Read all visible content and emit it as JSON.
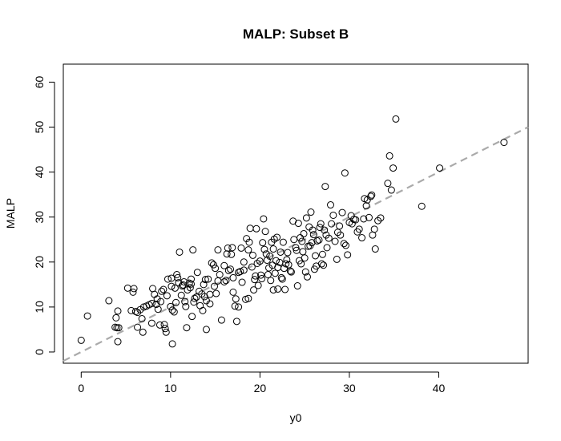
{
  "chart_data": {
    "type": "scatter",
    "title": "MALP: Subset B",
    "xlabel": "y0",
    "ylabel": "MALP",
    "xlim": [
      -2,
      50
    ],
    "ylim": [
      -2.5,
      64
    ],
    "x_ticks": [
      0,
      10,
      20,
      30,
      40
    ],
    "y_ticks": [
      0,
      10,
      20,
      30,
      40,
      50,
      60
    ],
    "x_tick_labels": [
      "0",
      "10",
      "20",
      "30",
      "40"
    ],
    "y_tick_labels": [
      "0",
      "10",
      "20",
      "30",
      "40",
      "50",
      "60"
    ],
    "grid": false,
    "reference_line": {
      "intercept": 0,
      "slope": 1,
      "style": "dashed",
      "color": "#aaaaaa"
    },
    "series": [
      {
        "marker": "open-circle",
        "color": "#000000",
        "points": [
          [
            0.0,
            2.6
          ],
          [
            0.7,
            8.0
          ],
          [
            3.1,
            11.4
          ],
          [
            3.8,
            5.5
          ],
          [
            3.9,
            7.6
          ],
          [
            4.1,
            9.1
          ],
          [
            4.0,
            5.4
          ],
          [
            4.2,
            5.4
          ],
          [
            4.1,
            2.3
          ],
          [
            5.2,
            14.2
          ],
          [
            5.6,
            9.2
          ],
          [
            5.8,
            13.3
          ],
          [
            5.9,
            14.1
          ],
          [
            6.1,
            9.0
          ],
          [
            6.3,
            8.8
          ],
          [
            6.3,
            5.5
          ],
          [
            6.6,
            9.4
          ],
          [
            6.8,
            7.4
          ],
          [
            6.9,
            4.4
          ],
          [
            7.0,
            10.0
          ],
          [
            7.3,
            10.2
          ],
          [
            7.6,
            10.5
          ],
          [
            7.9,
            10.8
          ],
          [
            7.9,
            6.4
          ],
          [
            8.0,
            14.1
          ],
          [
            8.2,
            12.8
          ],
          [
            8.4,
            10.6
          ],
          [
            8.5,
            11.8
          ],
          [
            8.6,
            9.5
          ],
          [
            8.8,
            6.0
          ],
          [
            8.9,
            11.2
          ],
          [
            9.0,
            13.5
          ],
          [
            9.2,
            13.9
          ],
          [
            9.3,
            6.1
          ],
          [
            9.4,
            5.2
          ],
          [
            9.5,
            4.4
          ],
          [
            9.6,
            12.5
          ],
          [
            9.7,
            16.2
          ],
          [
            10.0,
            10.1
          ],
          [
            10.1,
            16.4
          ],
          [
            10.1,
            14.6
          ],
          [
            10.2,
            9.3
          ],
          [
            10.2,
            1.8
          ],
          [
            10.4,
            8.9
          ],
          [
            10.5,
            14.2
          ],
          [
            10.6,
            11.0
          ],
          [
            10.7,
            17.2
          ],
          [
            10.8,
            16.5
          ],
          [
            10.9,
            15.4
          ],
          [
            11.0,
            22.2
          ],
          [
            11.2,
            12.6
          ],
          [
            11.3,
            14.7
          ],
          [
            11.4,
            14.9
          ],
          [
            11.5,
            15.6
          ],
          [
            11.6,
            11.2
          ],
          [
            11.7,
            10.1
          ],
          [
            11.8,
            5.4
          ],
          [
            11.9,
            13.8
          ],
          [
            12.1,
            15.3
          ],
          [
            12.2,
            14.3
          ],
          [
            12.3,
            16.2
          ],
          [
            12.3,
            15.1
          ],
          [
            12.4,
            7.9
          ],
          [
            12.5,
            22.7
          ],
          [
            12.6,
            11.1
          ],
          [
            12.7,
            11.9
          ],
          [
            12.9,
            12.2
          ],
          [
            13.0,
            17.7
          ],
          [
            13.2,
            13.5
          ],
          [
            13.3,
            10.3
          ],
          [
            13.5,
            12.9
          ],
          [
            13.6,
            9.2
          ],
          [
            13.7,
            15.0
          ],
          [
            13.8,
            12.3
          ],
          [
            13.9,
            16.1
          ],
          [
            14.0,
            11.4
          ],
          [
            14.0,
            5.0
          ],
          [
            14.2,
            16.2
          ],
          [
            14.4,
            10.7
          ],
          [
            14.4,
            12.8
          ],
          [
            14.6,
            19.8
          ],
          [
            14.8,
            19.4
          ],
          [
            14.9,
            14.6
          ],
          [
            15.0,
            18.6
          ],
          [
            15.1,
            13.0
          ],
          [
            15.3,
            15.8
          ],
          [
            15.3,
            22.7
          ],
          [
            15.5,
            17.2
          ],
          [
            15.7,
            7.1
          ],
          [
            16.0,
            15.6
          ],
          [
            16.0,
            19.2
          ],
          [
            16.2,
            15.9
          ],
          [
            16.3,
            21.8
          ],
          [
            16.4,
            23.1
          ],
          [
            16.5,
            18.1
          ],
          [
            16.7,
            18.4
          ],
          [
            16.8,
            21.7
          ],
          [
            16.9,
            23.2
          ],
          [
            17.0,
            13.3
          ],
          [
            17.0,
            16.5
          ],
          [
            17.2,
            10.2
          ],
          [
            17.3,
            11.8
          ],
          [
            17.4,
            6.8
          ],
          [
            17.6,
            10.0
          ],
          [
            17.6,
            17.7
          ],
          [
            17.8,
            17.9
          ],
          [
            17.9,
            23.1
          ],
          [
            18.0,
            15.5
          ],
          [
            18.2,
            20.0
          ],
          [
            18.2,
            18.2
          ],
          [
            18.4,
            11.7
          ],
          [
            18.5,
            25.2
          ],
          [
            18.7,
            11.9
          ],
          [
            18.7,
            22.7
          ],
          [
            18.8,
            24.4
          ],
          [
            18.9,
            27.5
          ],
          [
            19.1,
            18.9
          ],
          [
            19.2,
            21.5
          ],
          [
            19.3,
            13.8
          ],
          [
            19.4,
            16.1
          ],
          [
            19.5,
            16.9
          ],
          [
            19.6,
            27.4
          ],
          [
            19.7,
            19.7
          ],
          [
            19.8,
            14.8
          ],
          [
            20.0,
            20.2
          ],
          [
            20.1,
            17.1
          ],
          [
            20.2,
            16.3
          ],
          [
            20.3,
            24.3
          ],
          [
            20.4,
            29.6
          ],
          [
            20.5,
            22.8
          ],
          [
            20.6,
            26.8
          ],
          [
            20.7,
            21.8
          ],
          [
            20.8,
            20.4
          ],
          [
            20.9,
            17.2
          ],
          [
            21.0,
            18.7
          ],
          [
            21.1,
            21.3
          ],
          [
            21.2,
            15.9
          ],
          [
            21.3,
            24.4
          ],
          [
            21.4,
            19.3
          ],
          [
            21.5,
            22.9
          ],
          [
            21.5,
            13.8
          ],
          [
            21.6,
            25.1
          ],
          [
            21.7,
            17.5
          ],
          [
            21.8,
            20.3
          ],
          [
            21.9,
            25.5
          ],
          [
            22.0,
            18.8
          ],
          [
            22.0,
            14.0
          ],
          [
            22.2,
            19.9
          ],
          [
            22.3,
            22.2
          ],
          [
            22.4,
            16.5
          ],
          [
            22.5,
            16.2
          ],
          [
            22.6,
            24.4
          ],
          [
            22.7,
            18.6
          ],
          [
            22.8,
            13.9
          ],
          [
            22.9,
            19.6
          ],
          [
            23.0,
            20.5
          ],
          [
            23.1,
            22.1
          ],
          [
            23.2,
            19.4
          ],
          [
            23.4,
            18.0
          ],
          [
            23.5,
            17.8
          ],
          [
            23.7,
            29.1
          ],
          [
            23.8,
            25.0
          ],
          [
            24.0,
            23.2
          ],
          [
            24.1,
            22.6
          ],
          [
            24.2,
            14.7
          ],
          [
            24.3,
            28.6
          ],
          [
            24.4,
            20.3
          ],
          [
            24.5,
            25.4
          ],
          [
            24.6,
            19.6
          ],
          [
            24.7,
            24.6
          ],
          [
            24.8,
            22.3
          ],
          [
            24.9,
            26.3
          ],
          [
            25.0,
            20.9
          ],
          [
            25.1,
            17.8
          ],
          [
            25.2,
            29.8
          ],
          [
            25.3,
            16.7
          ],
          [
            25.4,
            23.5
          ],
          [
            25.5,
            27.8
          ],
          [
            25.6,
            23.6
          ],
          [
            25.7,
            31.1
          ],
          [
            25.8,
            24.3
          ],
          [
            25.9,
            27.1
          ],
          [
            26.0,
            26.1
          ],
          [
            26.1,
            18.4
          ],
          [
            26.2,
            21.4
          ],
          [
            26.3,
            19.1
          ],
          [
            26.4,
            24.7
          ],
          [
            26.6,
            24.9
          ],
          [
            26.7,
            27.7
          ],
          [
            26.8,
            28.5
          ],
          [
            26.9,
            19.6
          ],
          [
            27.0,
            21.7
          ],
          [
            27.1,
            19.3
          ],
          [
            27.2,
            27.1
          ],
          [
            27.3,
            36.8
          ],
          [
            27.4,
            26.0
          ],
          [
            27.5,
            23.2
          ],
          [
            27.7,
            25.3
          ],
          [
            27.9,
            32.7
          ],
          [
            28.0,
            28.5
          ],
          [
            28.2,
            30.4
          ],
          [
            28.4,
            24.6
          ],
          [
            28.6,
            20.6
          ],
          [
            28.7,
            26.6
          ],
          [
            28.9,
            28.0
          ],
          [
            29.0,
            26.0
          ],
          [
            29.2,
            31.0
          ],
          [
            29.4,
            24.1
          ],
          [
            29.5,
            39.8
          ],
          [
            29.6,
            23.7
          ],
          [
            29.8,
            21.6
          ],
          [
            30.0,
            28.8
          ],
          [
            30.2,
            30.3
          ],
          [
            30.3,
            28.5
          ],
          [
            30.5,
            29.5
          ],
          [
            30.7,
            29.4
          ],
          [
            30.9,
            26.7
          ],
          [
            31.1,
            27.3
          ],
          [
            31.4,
            25.4
          ],
          [
            31.6,
            29.6
          ],
          [
            31.7,
            34.1
          ],
          [
            31.9,
            32.5
          ],
          [
            32.0,
            33.8
          ],
          [
            32.2,
            29.9
          ],
          [
            32.4,
            34.6
          ],
          [
            32.5,
            34.9
          ],
          [
            32.6,
            26.0
          ],
          [
            32.8,
            27.3
          ],
          [
            32.9,
            22.9
          ],
          [
            33.2,
            29.2
          ],
          [
            33.5,
            29.8
          ],
          [
            34.3,
            37.5
          ],
          [
            34.5,
            43.6
          ],
          [
            34.7,
            36.0
          ],
          [
            34.9,
            40.9
          ],
          [
            35.2,
            51.8
          ],
          [
            38.1,
            32.4
          ],
          [
            40.1,
            40.9
          ],
          [
            47.3,
            46.6
          ]
        ]
      }
    ]
  }
}
